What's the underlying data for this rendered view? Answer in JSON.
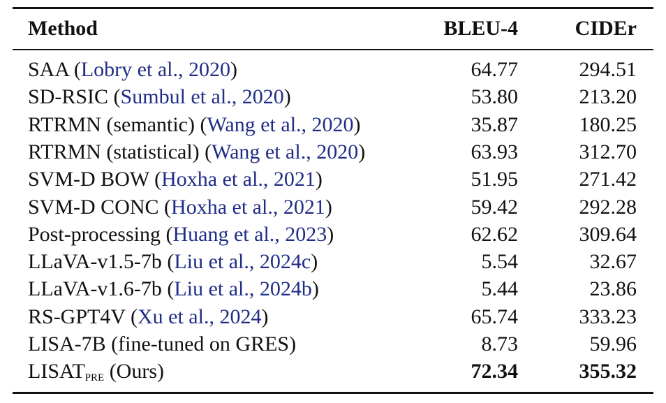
{
  "table": {
    "header": [
      "Method",
      "BLEU-4",
      "CIDEr"
    ],
    "rows": [
      {
        "method": "SAA",
        "citation": "Lobry et al., 2020",
        "bleu": "64.77",
        "cider": "294.51"
      },
      {
        "method": "SD-RSIC",
        "citation": "Sumbul et al., 2020",
        "bleu": "53.80",
        "cider": "213.20"
      },
      {
        "method": "RTRMN (semantic)",
        "citation": "Wang et al., 2020",
        "bleu": "35.87",
        "cider": "180.25"
      },
      {
        "method": "RTRMN (statistical)",
        "citation": "Wang et al., 2020",
        "bleu": "63.93",
        "cider": "312.70"
      },
      {
        "method": "SVM-D BOW",
        "citation": "Hoxha et al., 2021",
        "bleu": "51.95",
        "cider": "271.42"
      },
      {
        "method": "SVM-D CONC",
        "citation": "Hoxha et al., 2021",
        "bleu": "59.42",
        "cider": "292.28"
      },
      {
        "method": "Post-processing",
        "citation": "Huang et al., 2023",
        "bleu": "62.62",
        "cider": "309.64"
      },
      {
        "method": "LLaVA-v1.5-7b",
        "citation": "Liu et al., 2024c",
        "bleu": "5.54",
        "cider": "32.67"
      },
      {
        "method": "LLaVA-v1.6-7b",
        "citation": "Liu et al., 2024b",
        "bleu": "5.44",
        "cider": "23.86"
      },
      {
        "method": "RS-GPT4V",
        "citation": "Xu et al., 2024",
        "bleu": "65.74",
        "cider": "333.23"
      },
      {
        "method": "LISA-7B (fine-tuned on GRES)",
        "bleu": "8.73",
        "cider": "59.96"
      },
      {
        "method": "LISAT",
        "subscript": "PRE",
        "note": "(Ours)",
        "bleu": "72.34",
        "cider": "355.32",
        "bold": true
      }
    ]
  }
}
